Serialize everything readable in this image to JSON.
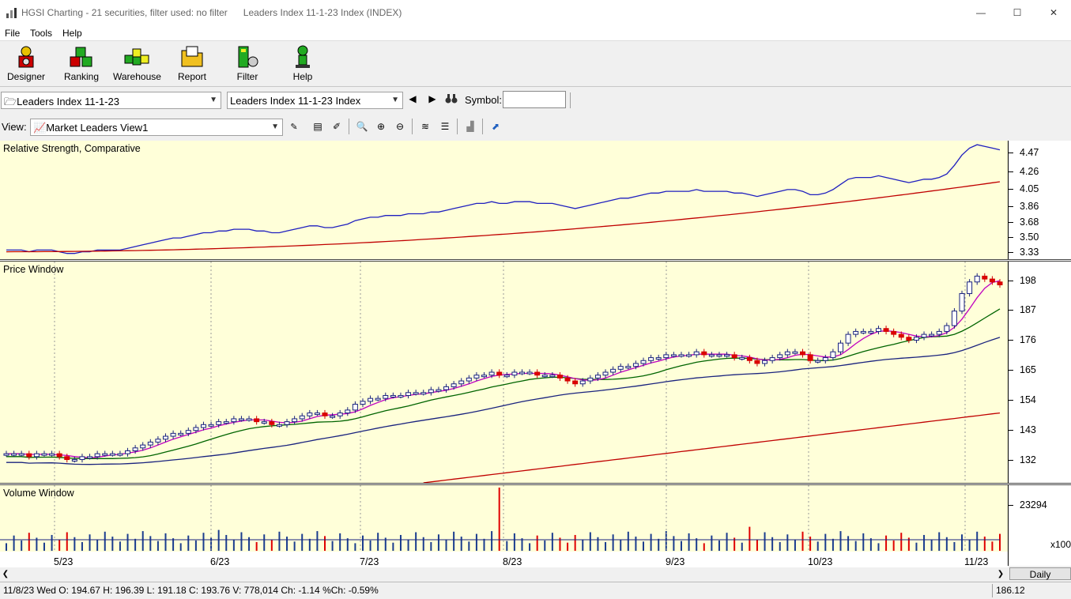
{
  "window": {
    "app_title": "HGSI Charting - 21 securities, filter used: no filter",
    "doc_title": "Leaders Index 11-1-23 Index (INDEX)",
    "minimize": "—",
    "maximize": "☐",
    "close": "✕"
  },
  "menu": [
    "File",
    "Tools",
    "Help"
  ],
  "toolbar": [
    {
      "label": "Designer",
      "icon": "designer-icon"
    },
    {
      "label": "Ranking",
      "icon": "ranking-icon"
    },
    {
      "label": "Warehouse",
      "icon": "warehouse-icon"
    },
    {
      "label": "Report",
      "icon": "report-icon"
    },
    {
      "label": "Filter",
      "icon": "filter-icon"
    },
    {
      "label": "Help",
      "icon": "help-icon"
    }
  ],
  "selectors": {
    "list_value": "Leaders Index 11-1-23",
    "security_value": "Leaders Index 11-1-23 Index",
    "symbol_label": "Symbol:",
    "symbol_value": ""
  },
  "view": {
    "label": "View:",
    "value": "Market Leaders View1"
  },
  "panels": {
    "rs": {
      "title": "Relative Strength, Comparative",
      "ticks": [
        "4.47",
        "4.26",
        "4.05",
        "3.86",
        "3.68",
        "3.50",
        "3.33"
      ]
    },
    "price": {
      "title": "Price Window",
      "ticks": [
        "198",
        "187",
        "176",
        "165",
        "154",
        "143",
        "132"
      ]
    },
    "volume": {
      "title": "Volume Window",
      "ticks": [
        "23294"
      ],
      "multiplier": "x100"
    }
  },
  "xaxis": {
    "labels": [
      "5/23",
      "6/23",
      "7/23",
      "8/23",
      "9/23",
      "10/23",
      "11/23"
    ],
    "period": "Daily"
  },
  "status": {
    "quote": "11/8/23 Wed O: 194.67 H: 196.39 L: 191.18 C: 193.76 V: 778,014 Ch: -1.14 %Ch: -0.59%",
    "cursor_value": "186.12"
  },
  "chart_data": {
    "type": "line",
    "price_axis": {
      "ylim": [
        126,
        202
      ]
    },
    "latest": {
      "date": "11/8/23",
      "open": 194.67,
      "high": 196.39,
      "low": 191.18,
      "close": 193.76,
      "volume": 778014
    },
    "close_series": [
      136,
      136,
      136,
      135,
      136,
      136,
      136,
      135,
      134,
      134,
      135,
      135,
      136,
      136,
      136,
      136,
      137,
      138,
      139,
      140,
      141,
      142,
      143,
      143,
      144,
      145,
      146,
      146,
      147,
      147,
      148,
      148,
      148,
      147,
      147,
      146,
      146,
      147,
      148,
      149,
      150,
      150,
      149,
      149,
      150,
      151,
      153,
      154,
      155,
      155,
      156,
      156,
      156,
      157,
      157,
      157,
      158,
      158,
      159,
      160,
      161,
      162,
      163,
      163,
      164,
      163,
      163,
      164,
      164,
      164,
      163,
      163,
      163,
      162,
      161,
      160,
      161,
      162,
      163,
      164,
      165,
      166,
      166,
      167,
      168,
      169,
      169,
      170,
      170,
      170,
      170,
      171,
      170,
      170,
      170,
      170,
      169,
      169,
      168,
      167,
      168,
      169,
      170,
      171,
      171,
      170,
      168,
      168,
      169,
      171,
      174,
      177,
      178,
      178,
      178,
      179,
      178,
      177,
      176,
      175,
      176,
      177,
      177,
      178,
      180,
      185,
      191,
      195,
      197,
      196,
      195,
      194
    ]
  }
}
